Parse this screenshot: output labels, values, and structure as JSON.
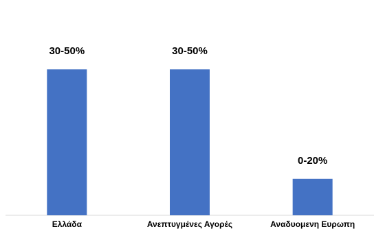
{
  "chart_data": {
    "type": "bar",
    "categories": [
      "Ελλάδα",
      "Ανεπτυγμένες Αγορές",
      "Αναδυομενη Ευρωπη"
    ],
    "values": [
      40,
      40,
      10
    ],
    "value_labels": [
      "30-50%",
      "30-50%",
      "0-20%"
    ],
    "title": "",
    "xlabel": "",
    "ylabel": "",
    "ylim": [
      0,
      50
    ],
    "grid": false,
    "legend": "none",
    "bar_color": "#4472C4",
    "axis_color": "#d9d9d9"
  }
}
